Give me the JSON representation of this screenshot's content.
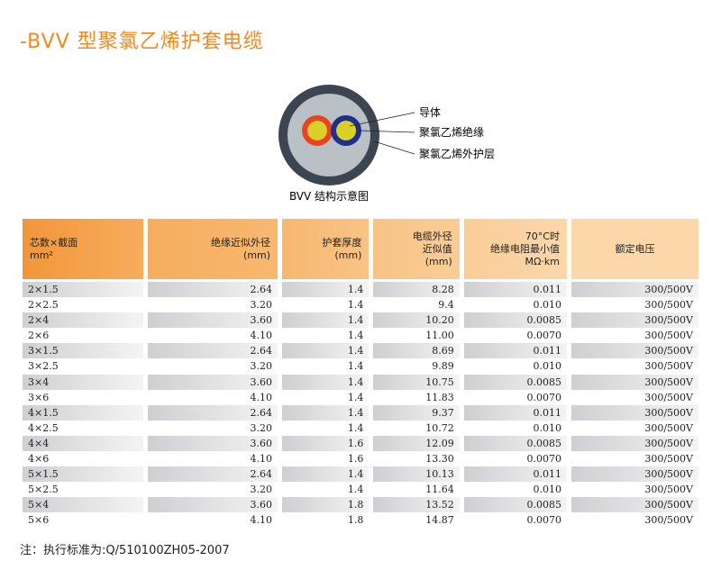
{
  "header": {
    "title": "-BVV 型聚氯乙烯护套电缆"
  },
  "diagram": {
    "labels": [
      "导体",
      "聚氯乙烯绝缘",
      "聚氯乙烯外护层"
    ],
    "caption": "BVV 结构示意图"
  },
  "table": {
    "columns": [
      [
        "芯数×截面",
        "mm²"
      ],
      [
        "绝缘近似外径",
        "(mm)"
      ],
      [
        "护套厚度",
        "(mm)"
      ],
      [
        "电缆外径",
        "近似值",
        "(mm)"
      ],
      [
        "70°C时",
        "绝缘电阻最小值",
        "MΩ·km"
      ],
      [
        "额定电压"
      ]
    ],
    "rows": [
      [
        "2×1.5",
        "2.64",
        "1.4",
        "8.28",
        "0.011",
        "300/500V"
      ],
      [
        "2×2.5",
        "3.20",
        "1.4",
        "9.4",
        "0.010",
        "300/500V"
      ],
      [
        "2×4",
        "3.60",
        "1.4",
        "10.20",
        "0.0085",
        "300/500V"
      ],
      [
        "2×6",
        "4.10",
        "1.4",
        "11.00",
        "0.0070",
        "300/500V"
      ],
      [
        "3×1.5",
        "2.64",
        "1.4",
        "8.69",
        "0.011",
        "300/500V"
      ],
      [
        "3×2.5",
        "3.20",
        "1.4",
        "9.89",
        "0.010",
        "300/500V"
      ],
      [
        "3×4",
        "3.60",
        "1.4",
        "10.75",
        "0.0085",
        "300/500V"
      ],
      [
        "3×6",
        "4.10",
        "1.4",
        "11.83",
        "0.0070",
        "300/500V"
      ],
      [
        "4×1.5",
        "2.64",
        "1.4",
        "9.37",
        "0.011",
        "300/500V"
      ],
      [
        "4×2.5",
        "3.20",
        "1.4",
        "10.72",
        "0.010",
        "300/500V"
      ],
      [
        "4×4",
        "3.60",
        "1.6",
        "12.09",
        "0.0085",
        "300/500V"
      ],
      [
        "4×6",
        "4.10",
        "1.6",
        "13.30",
        "0.0070",
        "300/500V"
      ],
      [
        "5×1.5",
        "2.64",
        "1.4",
        "10.13",
        "0.011",
        "300/500V"
      ],
      [
        "5×2.5",
        "3.20",
        "1.4",
        "11.64",
        "0.010",
        "300/500V"
      ],
      [
        "5×4",
        "3.60",
        "1.8",
        "13.52",
        "0.0085",
        "300/500V"
      ],
      [
        "5×6",
        "4.10",
        "1.8",
        "14.87",
        "0.0070",
        "300/500V"
      ]
    ]
  },
  "note": "注：执行标准为:Q/510100ZH05-2007"
}
